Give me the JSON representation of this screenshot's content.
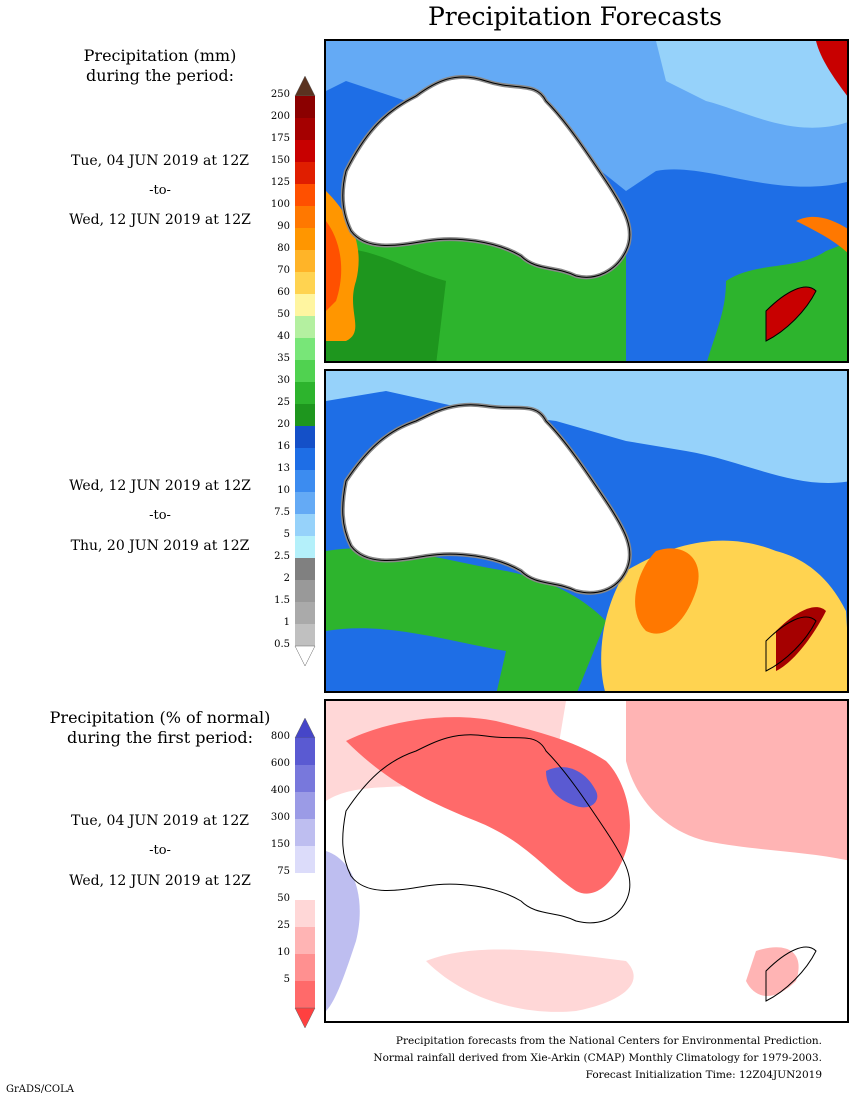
{
  "title": "Precipitation Forecasts",
  "section1": {
    "heading_line1": "Precipitation (mm)",
    "heading_line2": "during the period:",
    "period1": {
      "start": "Tue, 04 JUN 2019 at 12Z",
      "to": "-to-",
      "end": "Wed, 12 JUN 2019 at 12Z"
    },
    "period2": {
      "start": "Wed, 12 JUN 2019 at 12Z",
      "to": "-to-",
      "end": "Thu, 20 JUN 2019 at 12Z"
    }
  },
  "section2": {
    "heading_line1": "Precipitation (% of normal)",
    "heading_line2": "during the first period:",
    "period": {
      "start": "Tue, 04 JUN 2019 at 12Z",
      "to": "-to-",
      "end": "Wed, 12 JUN 2019 at 12Z"
    }
  },
  "precip_scale": {
    "labels": [
      "250",
      "200",
      "175",
      "150",
      "125",
      "100",
      "90",
      "80",
      "70",
      "60",
      "50",
      "40",
      "35",
      "30",
      "25",
      "20",
      "16",
      "13",
      "10",
      "7.5",
      "5",
      "2.5",
      "2",
      "1.5",
      "1",
      "0.5"
    ],
    "colors": [
      "#8b0000",
      "#a50000",
      "#c80000",
      "#e01e00",
      "#ff5000",
      "#ff7800",
      "#ff9600",
      "#ffb428",
      "#ffd350",
      "#fff5a0",
      "#b4f0a0",
      "#78e678",
      "#50d250",
      "#2db42d",
      "#1e961e",
      "#1450c8",
      "#1e6ee6",
      "#3c8cf0",
      "#64aaf5",
      "#96d2fa",
      "#b4f0fa",
      "#808080",
      "#999999",
      "#aaaaaa",
      "#c0c0c0"
    ],
    "top_arrow_color": "#5a3220",
    "bottom_arrow_color": "#ffffff"
  },
  "pct_scale": {
    "labels": [
      "800",
      "600",
      "400",
      "300",
      "150",
      "75",
      "50",
      "25",
      "10",
      "5"
    ],
    "colors": [
      "#5a5ad2",
      "#7878dc",
      "#9b9be6",
      "#bebef0",
      "#dcdcfa",
      "#ffffff",
      "#ffd7d7",
      "#ffb4b4",
      "#ff9090",
      "#ff6a6a"
    ],
    "top_arrow_color": "#4646c8",
    "bottom_arrow_color": "#ff4040"
  },
  "footer": {
    "line1": "Precipitation forecasts from the National Centers for Environmental Prediction.",
    "line2": "Normal rainfall derived from Xie-Arkin (CMAP) Monthly Climatology for 1979-2003.",
    "line3": "Forecast Initialization Time: 12Z04JUN2019"
  },
  "credit": "GrADS/COLA"
}
